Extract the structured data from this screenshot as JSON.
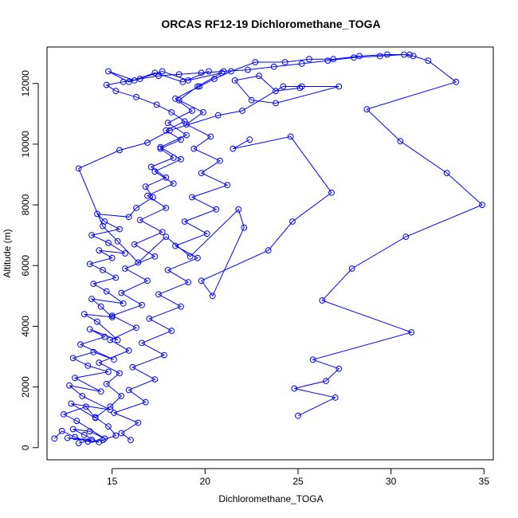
{
  "chart_data": {
    "type": "line",
    "title": "ORCAS RF12-19 Dichloromethane_TOGA",
    "xlabel": "Dichloromethane_TOGA",
    "ylabel": "Altitude (m)",
    "xlim": [
      11.5,
      35.5
    ],
    "ylim": [
      -400,
      13200
    ],
    "xticks": [
      15,
      20,
      25,
      30,
      35
    ],
    "yticks": [
      0,
      2000,
      4000,
      6000,
      8000,
      10000,
      12000
    ],
    "grid": false,
    "legend": "none",
    "series": [
      {
        "color": "#0000ff",
        "marker": "open-circle",
        "points": [
          [
            13.2,
            150
          ],
          [
            13.9,
            260
          ],
          [
            12.6,
            320
          ],
          [
            14.3,
            180
          ],
          [
            13.5,
            420
          ],
          [
            12.9,
            610
          ],
          [
            13.8,
            540
          ],
          [
            14.6,
            300
          ],
          [
            13.1,
            880
          ],
          [
            12.4,
            1100
          ],
          [
            13.6,
            1350
          ],
          [
            14.1,
            980
          ],
          [
            12.8,
            1450
          ],
          [
            14.9,
            1250
          ],
          [
            13.4,
            1700
          ],
          [
            12.7,
            2050
          ],
          [
            14.4,
            1850
          ],
          [
            13.0,
            2300
          ],
          [
            14.8,
            2500
          ],
          [
            13.7,
            2700
          ],
          [
            12.9,
            2950
          ],
          [
            14.0,
            3150
          ],
          [
            15.1,
            2900
          ],
          [
            13.3,
            3400
          ],
          [
            14.6,
            3650
          ],
          [
            13.8,
            3900
          ],
          [
            15.3,
            3550
          ],
          [
            14.2,
            4150
          ],
          [
            13.5,
            4400
          ],
          [
            15.0,
            4300
          ],
          [
            14.4,
            4650
          ],
          [
            13.9,
            4900
          ],
          [
            15.6,
            4750
          ],
          [
            14.7,
            5150
          ],
          [
            14.0,
            5400
          ],
          [
            15.2,
            5600
          ],
          [
            14.5,
            5850
          ],
          [
            13.8,
            6050
          ],
          [
            15.0,
            6250
          ],
          [
            14.3,
            6500
          ],
          [
            15.7,
            6400
          ],
          [
            14.8,
            6750
          ],
          [
            13.9,
            7000
          ],
          [
            15.4,
            7200
          ],
          [
            14.6,
            7450
          ],
          [
            14.2,
            7700
          ],
          [
            15.9,
            7600
          ],
          [
            16.3,
            7900
          ],
          [
            17.2,
            8250
          ],
          [
            16.8,
            8600
          ],
          [
            17.9,
            8900
          ],
          [
            17.1,
            9250
          ],
          [
            18.3,
            9550
          ],
          [
            17.6,
            9850
          ],
          [
            18.7,
            10150
          ],
          [
            17.9,
            10450
          ],
          [
            18.9,
            10750
          ],
          [
            18.2,
            11050
          ],
          [
            17.4,
            11300
          ],
          [
            16.3,
            11550
          ],
          [
            15.2,
            11750
          ],
          [
            14.7,
            11950
          ],
          [
            15.6,
            12050
          ],
          [
            16.5,
            12150
          ],
          [
            17.5,
            12250
          ],
          [
            18.6,
            12300
          ],
          [
            19.8,
            12350
          ],
          [
            21.0,
            12400
          ],
          [
            22.3,
            12450
          ],
          [
            23.7,
            12550
          ],
          [
            25.2,
            12650
          ],
          [
            26.6,
            12750
          ],
          [
            28.0,
            12850
          ],
          [
            29.4,
            12900
          ],
          [
            30.7,
            12950
          ],
          [
            31.2,
            12900
          ],
          [
            32.0,
            12750
          ],
          [
            33.5,
            12050
          ],
          [
            28.7,
            11150
          ],
          [
            30.5,
            10100
          ],
          [
            33.0,
            9050
          ],
          [
            34.9,
            8000
          ],
          [
            30.8,
            6950
          ],
          [
            27.9,
            5900
          ],
          [
            26.3,
            4850
          ],
          [
            31.1,
            3800
          ],
          [
            25.8,
            2900
          ],
          [
            27.2,
            2600
          ],
          [
            26.5,
            2200
          ],
          [
            24.8,
            1950
          ],
          [
            27.0,
            1650
          ],
          [
            25.0,
            1050
          ]
        ]
      },
      {
        "color": "#0000ff",
        "marker": "open-circle",
        "points": [
          [
            16.0,
            250
          ],
          [
            15.5,
            480
          ],
          [
            16.4,
            820
          ],
          [
            15.1,
            1150
          ],
          [
            16.8,
            1500
          ],
          [
            15.9,
            1900
          ],
          [
            17.3,
            2250
          ],
          [
            16.1,
            2650
          ],
          [
            17.8,
            3050
          ],
          [
            16.6,
            3450
          ],
          [
            18.2,
            3850
          ],
          [
            17.0,
            4250
          ],
          [
            18.7,
            4650
          ],
          [
            17.5,
            5050
          ],
          [
            19.1,
            5450
          ],
          [
            18.0,
            5850
          ],
          [
            19.6,
            6250
          ],
          [
            18.4,
            6650
          ],
          [
            20.1,
            7050
          ],
          [
            18.9,
            7450
          ],
          [
            20.6,
            7850
          ],
          [
            19.3,
            8250
          ],
          [
            21.2,
            8650
          ],
          [
            19.8,
            9050
          ],
          [
            20.8,
            9450
          ],
          [
            19.4,
            9850
          ],
          [
            20.3,
            10250
          ],
          [
            19.0,
            10650
          ],
          [
            19.9,
            11050
          ],
          [
            18.6,
            11450
          ],
          [
            19.6,
            11900
          ],
          [
            20.9,
            12350
          ],
          [
            19.1,
            12100
          ],
          [
            17.7,
            12400
          ],
          [
            16.2,
            12100
          ],
          [
            14.8,
            12400
          ],
          [
            15.9,
            12050
          ],
          [
            17.3,
            12350
          ],
          [
            18.8,
            12050
          ],
          [
            20.2,
            12400
          ]
        ]
      },
      {
        "color": "#0000ff",
        "marker": "open-circle",
        "points": [
          [
            22.4,
            10150
          ],
          [
            21.5,
            9850
          ],
          [
            24.6,
            10250
          ],
          [
            26.8,
            8400
          ],
          [
            24.7,
            7450
          ],
          [
            23.4,
            6500
          ],
          [
            19.8,
            5500
          ],
          [
            20.4,
            5000
          ],
          [
            22.1,
            7250
          ],
          [
            21.8,
            7850
          ],
          [
            19.2,
            6300
          ],
          [
            17.9,
            6950
          ],
          [
            16.4,
            6100
          ],
          [
            15.3,
            6800
          ],
          [
            14.5,
            7300
          ],
          [
            13.2,
            9200
          ],
          [
            15.4,
            9800
          ],
          [
            16.9,
            10050
          ],
          [
            18.1,
            10450
          ],
          [
            20.7,
            10950
          ],
          [
            22.0,
            11100
          ],
          [
            24.2,
            11900
          ],
          [
            25.2,
            11900
          ],
          [
            27.2,
            11900
          ],
          [
            23.8,
            11350
          ],
          [
            22.5,
            11450
          ],
          [
            21.6,
            12100
          ],
          [
            22.9,
            12250
          ],
          [
            23.8,
            11750
          ],
          [
            25.1,
            11850
          ]
        ]
      },
      {
        "color": "#0000ff",
        "marker": "open-circle",
        "points": [
          [
            11.9,
            300
          ],
          [
            12.3,
            550
          ],
          [
            13.0,
            350
          ],
          [
            13.7,
            200
          ],
          [
            14.5,
            250
          ],
          [
            15.2,
            400
          ],
          [
            14.8,
            700
          ],
          [
            14.1,
            1000
          ],
          [
            14.9,
            1350
          ],
          [
            15.5,
            1700
          ],
          [
            14.7,
            2100
          ],
          [
            15.4,
            2450
          ],
          [
            14.3,
            2800
          ],
          [
            15.9,
            3200
          ],
          [
            14.9,
            3550
          ],
          [
            16.3,
            3950
          ],
          [
            15.0,
            4350
          ],
          [
            16.6,
            4700
          ],
          [
            15.5,
            5100
          ],
          [
            16.9,
            5500
          ],
          [
            15.7,
            5900
          ],
          [
            17.3,
            6300
          ],
          [
            16.2,
            6700
          ],
          [
            17.7,
            7100
          ],
          [
            16.5,
            7500
          ],
          [
            17.9,
            7900
          ],
          [
            16.9,
            8300
          ],
          [
            18.3,
            8700
          ],
          [
            17.3,
            9100
          ],
          [
            18.7,
            9500
          ],
          [
            17.6,
            9900
          ],
          [
            19.0,
            10300
          ],
          [
            18.0,
            10700
          ],
          [
            19.3,
            11100
          ],
          [
            18.4,
            11500
          ],
          [
            19.7,
            11900
          ],
          [
            20.5,
            12150
          ],
          [
            21.4,
            12400
          ],
          [
            22.7,
            12700
          ],
          [
            24.3,
            12700
          ],
          [
            25.6,
            12800
          ],
          [
            26.9,
            12800
          ],
          [
            28.3,
            12900
          ],
          [
            29.8,
            12950
          ],
          [
            31.0,
            12950
          ]
        ]
      }
    ]
  }
}
